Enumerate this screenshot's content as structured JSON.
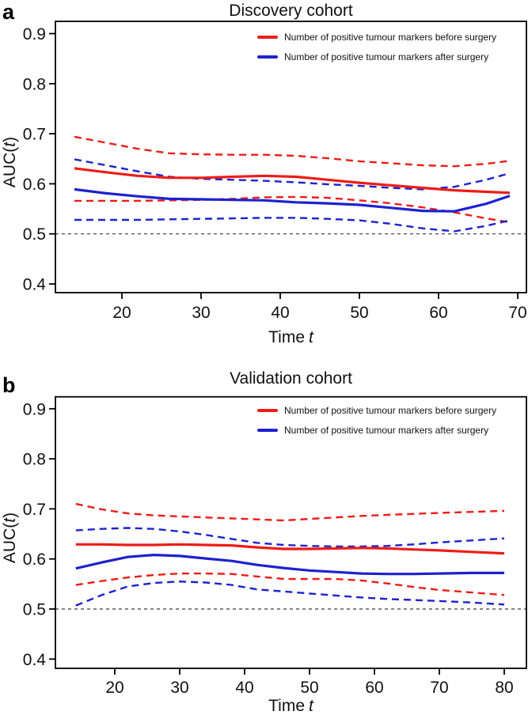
{
  "figure": {
    "panels": [
      {
        "label": "a",
        "xlabel": {
          "text": "Time",
          "var": "t"
        },
        "ylabel": {
          "prefix": "AUC(",
          "var": "t",
          "suffix": ")"
        }
      },
      {
        "label": "b",
        "xlabel": {
          "text": "Time",
          "var": "t"
        },
        "ylabel": {
          "prefix": "AUC(",
          "var": "t",
          "suffix": ")"
        }
      }
    ]
  },
  "colors": {
    "before": "#ee1c17",
    "after": "#1c22cf",
    "reference": "#3a3a3a",
    "axis": "#000000"
  },
  "chart_data": [
    {
      "type": "line",
      "title": "Discovery cohort",
      "xlabel": "Time t",
      "ylabel": "AUC(t)",
      "xlim": [
        11.6,
        71.1
      ],
      "ylim": [
        0.383,
        0.925
      ],
      "xticks": [
        20,
        30,
        40,
        50,
        60,
        70
      ],
      "yticks": [
        0.4,
        0.5,
        0.6,
        0.7,
        0.8,
        0.9
      ],
      "grid": false,
      "legend_position": "top-right",
      "reference_line_y": 0.5,
      "legend": [
        {
          "label": "Number of positive tumour markers before surgery",
          "color": "#ee1c17"
        },
        {
          "label": "Number of positive tumour markers after surgery",
          "color": "#1c22cf"
        }
      ],
      "x": [
        14,
        18,
        22,
        26,
        30,
        34,
        38,
        42,
        46,
        50,
        54,
        58,
        62,
        66,
        69
      ],
      "series": [
        {
          "id": "before-upper",
          "name": "Before surgery upper 95% CI",
          "style": "dashed",
          "color": "#ee1c17",
          "values": [
            0.694,
            0.682,
            0.67,
            0.661,
            0.659,
            0.658,
            0.658,
            0.656,
            0.651,
            0.645,
            0.641,
            0.637,
            0.635,
            0.64,
            0.646
          ]
        },
        {
          "id": "before-lower",
          "name": "Before surgery lower 95% CI",
          "style": "dashed",
          "color": "#ee1c17",
          "values": [
            0.566,
            0.566,
            0.566,
            0.567,
            0.568,
            0.57,
            0.573,
            0.574,
            0.572,
            0.567,
            0.561,
            0.553,
            0.543,
            0.531,
            0.523
          ]
        },
        {
          "id": "after-upper",
          "name": "After surgery upper 95% CI",
          "style": "dashed",
          "color": "#1c22cf",
          "values": [
            0.649,
            0.637,
            0.625,
            0.614,
            0.61,
            0.608,
            0.606,
            0.603,
            0.599,
            0.596,
            0.592,
            0.589,
            0.594,
            0.608,
            0.621
          ]
        },
        {
          "id": "after-lower",
          "name": "After surgery lower 95% CI",
          "style": "dashed",
          "color": "#1c22cf",
          "values": [
            0.528,
            0.528,
            0.528,
            0.529,
            0.53,
            0.531,
            0.532,
            0.532,
            0.53,
            0.527,
            0.52,
            0.511,
            0.505,
            0.516,
            0.527
          ]
        },
        {
          "id": "before-mean",
          "name": "Number of positive tumour markers before surgery",
          "style": "solid",
          "color": "#ee1c17",
          "values": [
            0.631,
            0.623,
            0.616,
            0.612,
            0.612,
            0.614,
            0.616,
            0.614,
            0.608,
            0.602,
            0.597,
            0.592,
            0.587,
            0.584,
            0.582
          ]
        },
        {
          "id": "after-mean",
          "name": "Number of positive tumour markers after surgery",
          "style": "solid",
          "color": "#1c22cf",
          "values": [
            0.589,
            0.581,
            0.575,
            0.57,
            0.569,
            0.568,
            0.567,
            0.563,
            0.561,
            0.558,
            0.552,
            0.546,
            0.545,
            0.56,
            0.576
          ]
        }
      ]
    },
    {
      "type": "line",
      "title": "Validation cohort",
      "xlabel": "Time t",
      "ylabel": "AUC(t)",
      "xlim": [
        10.9,
        83.4
      ],
      "ylim": [
        0.383,
        0.925
      ],
      "xticks": [
        20,
        30,
        40,
        50,
        60,
        70,
        80
      ],
      "yticks": [
        0.4,
        0.5,
        0.6,
        0.7,
        0.8,
        0.9
      ],
      "grid": false,
      "legend_position": "top-right",
      "reference_line_y": 0.5,
      "legend": [
        {
          "label": "Number of positive tumour markers before surgery",
          "color": "#ee1c17"
        },
        {
          "label": "Number of positive tumour markers after surgery",
          "color": "#1c22cf"
        }
      ],
      "x": [
        14,
        18,
        22,
        26,
        30,
        34,
        38,
        42,
        46,
        50,
        54,
        58,
        62,
        66,
        70,
        75,
        80
      ],
      "series": [
        {
          "id": "before-upper",
          "name": "Before surgery upper 95% CI",
          "style": "dashed",
          "color": "#ee1c17",
          "values": [
            0.71,
            0.699,
            0.691,
            0.687,
            0.685,
            0.683,
            0.681,
            0.679,
            0.677,
            0.68,
            0.683,
            0.686,
            0.688,
            0.69,
            0.692,
            0.694,
            0.696
          ]
        },
        {
          "id": "before-lower",
          "name": "Before surgery lower 95% CI",
          "style": "dashed",
          "color": "#ee1c17",
          "values": [
            0.548,
            0.556,
            0.563,
            0.568,
            0.571,
            0.571,
            0.57,
            0.565,
            0.56,
            0.56,
            0.56,
            0.557,
            0.551,
            0.544,
            0.538,
            0.533,
            0.528
          ]
        },
        {
          "id": "after-upper",
          "name": "After surgery upper 95% CI",
          "style": "dashed",
          "color": "#1c22cf",
          "values": [
            0.657,
            0.66,
            0.662,
            0.66,
            0.655,
            0.648,
            0.64,
            0.632,
            0.628,
            0.626,
            0.625,
            0.625,
            0.626,
            0.629,
            0.633,
            0.637,
            0.641
          ]
        },
        {
          "id": "after-lower",
          "name": "After surgery lower 95% CI",
          "style": "dashed",
          "color": "#1c22cf",
          "values": [
            0.507,
            0.528,
            0.545,
            0.552,
            0.555,
            0.553,
            0.548,
            0.539,
            0.535,
            0.531,
            0.527,
            0.523,
            0.52,
            0.518,
            0.516,
            0.513,
            0.509
          ]
        },
        {
          "id": "before-mean",
          "name": "Number of positive tumour markers before surgery",
          "style": "solid",
          "color": "#ee1c17",
          "values": [
            0.629,
            0.629,
            0.628,
            0.628,
            0.629,
            0.628,
            0.627,
            0.623,
            0.62,
            0.62,
            0.621,
            0.622,
            0.621,
            0.619,
            0.617,
            0.614,
            0.611
          ]
        },
        {
          "id": "after-mean",
          "name": "Number of positive tumour markers after surgery",
          "style": "solid",
          "color": "#1c22cf",
          "values": [
            0.581,
            0.593,
            0.604,
            0.608,
            0.606,
            0.601,
            0.596,
            0.588,
            0.582,
            0.577,
            0.574,
            0.571,
            0.57,
            0.57,
            0.571,
            0.572,
            0.572
          ]
        }
      ]
    }
  ]
}
